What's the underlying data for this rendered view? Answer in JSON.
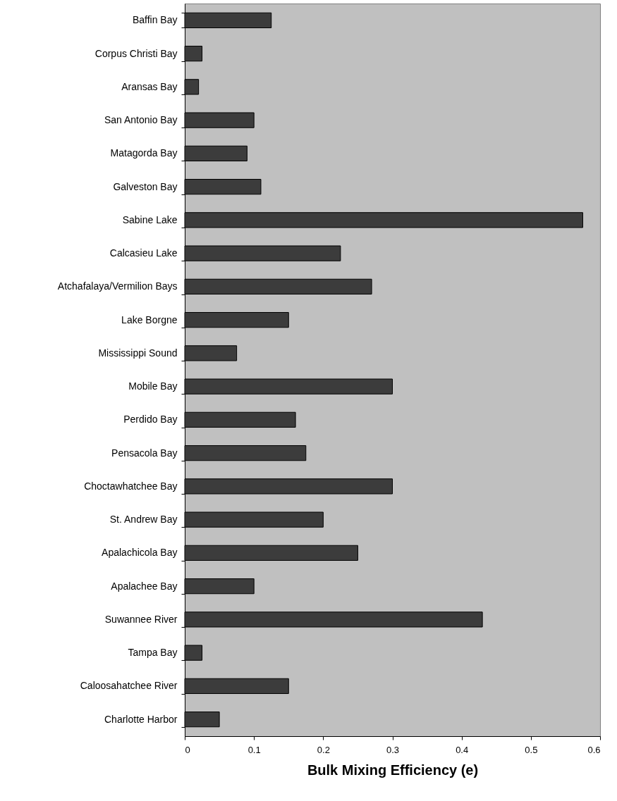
{
  "chart_data": {
    "type": "bar",
    "orientation": "horizontal",
    "xlabel": "Bulk Mixing Efficiency (e)",
    "categories": [
      "Baffin Bay",
      "Corpus Christi Bay",
      "Aransas Bay",
      "San Antonio Bay",
      "Matagorda Bay",
      "Galveston Bay",
      "Sabine Lake",
      "Calcasieu Lake",
      "Atchafalaya/Vermilion Bays",
      "Lake Borgne",
      "Mississippi Sound",
      "Mobile Bay",
      "Perdido Bay",
      "Pensacola Bay",
      "Choctawhatchee Bay",
      "St. Andrew Bay",
      "Apalachicola Bay",
      "Apalachee Bay",
      "Suwannee River",
      "Tampa Bay",
      "Caloosahatchee River",
      "Charlotte Harbor"
    ],
    "values": [
      0.125,
      0.025,
      0.02,
      0.1,
      0.09,
      0.11,
      0.575,
      0.225,
      0.27,
      0.15,
      0.075,
      0.3,
      0.16,
      0.175,
      0.3,
      0.2,
      0.25,
      0.1,
      0.43,
      0.025,
      0.15,
      0.05
    ],
    "color": "#3c3c3c",
    "xlim": [
      0,
      0.6
    ],
    "xticks": [
      0,
      0.1,
      0.2,
      0.3,
      0.4,
      0.5,
      0.6
    ],
    "grid": false
  }
}
